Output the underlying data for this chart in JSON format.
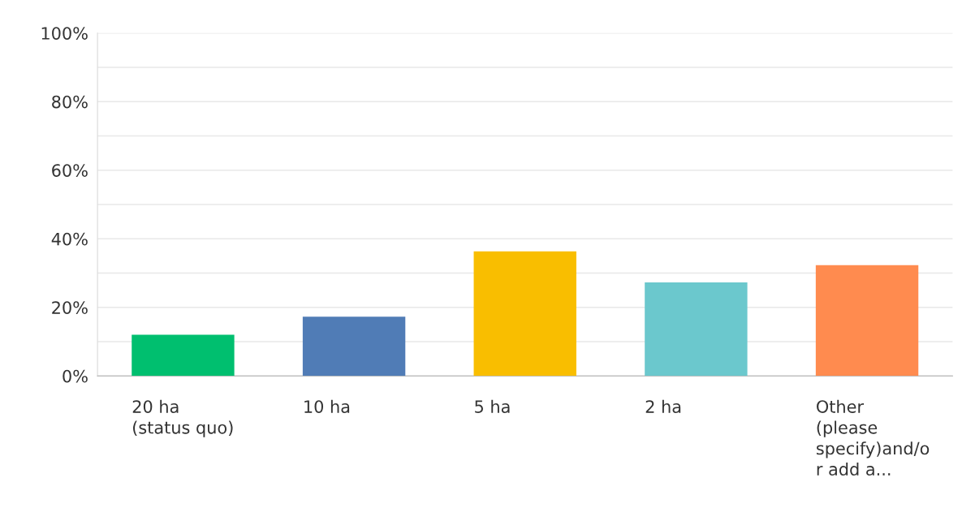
{
  "chart_data": {
    "type": "bar",
    "categories": [
      "20 ha\n(status quo)",
      "10 ha",
      "5 ha",
      "2 ha",
      "Other\n(please\nspecify)and/o\nr add a..."
    ],
    "values": [
      12,
      17.3,
      36.3,
      27.3,
      32.3
    ],
    "colors": [
      "#00bf6f",
      "#507cb6",
      "#f9be00",
      "#6bc8cd",
      "#ff8b4f"
    ],
    "ylim": [
      0,
      100
    ],
    "yticks": [
      {
        "value": 0,
        "label": "0%"
      },
      {
        "value": 10,
        "label": null
      },
      {
        "value": 20,
        "label": "20%"
      },
      {
        "value": 30,
        "label": null
      },
      {
        "value": 40,
        "label": "40%"
      },
      {
        "value": 50,
        "label": null
      },
      {
        "value": 60,
        "label": "60%"
      },
      {
        "value": 70,
        "label": null
      },
      {
        "value": 80,
        "label": "80%"
      },
      {
        "value": 90,
        "label": null
      },
      {
        "value": 100,
        "label": "100%"
      }
    ],
    "grid": "y"
  }
}
